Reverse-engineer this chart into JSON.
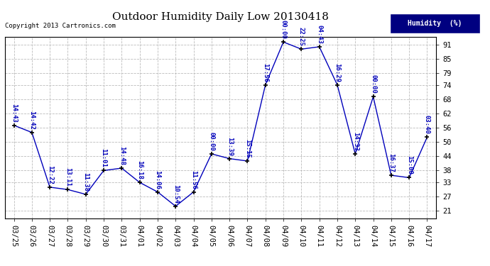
{
  "title": "Outdoor Humidity Daily Low 20130418",
  "copyright": "Copyright 2013 Cartronics.com",
  "legend_label": "Humidity  (%)",
  "x_labels": [
    "03/25",
    "03/26",
    "03/27",
    "03/28",
    "03/29",
    "03/30",
    "03/31",
    "04/01",
    "04/02",
    "04/03",
    "04/04",
    "04/05",
    "04/06",
    "04/07",
    "04/08",
    "04/09",
    "04/10",
    "04/11",
    "04/12",
    "04/13",
    "04/14",
    "04/15",
    "04/16",
    "04/17"
  ],
  "y_values": [
    57,
    54,
    31,
    30,
    28,
    38,
    39,
    33,
    29,
    23,
    29,
    45,
    43,
    42,
    74,
    92,
    89,
    90,
    74,
    45,
    69,
    36,
    35,
    52
  ],
  "time_labels": [
    "14:43",
    "14:42",
    "12:22",
    "13:11",
    "11:38",
    "11:01",
    "14:48",
    "16:18",
    "14:06",
    "10:54",
    "11:56",
    "00:00",
    "13:39",
    "15:15",
    "17:56",
    "00:00",
    "22:25",
    "04:43",
    "16:29",
    "14:33",
    "00:00",
    "16:37",
    "15:00",
    "03:40"
  ],
  "line_color": "#0000bb",
  "marker_color": "#000000",
  "bg_color": "#ffffff",
  "grid_color": "#bbbbbb",
  "title_fontsize": 11,
  "label_fontsize": 6.5,
  "tick_fontsize": 7.5,
  "copyright_fontsize": 6.5,
  "ylim": [
    18,
    94
  ],
  "yticks": [
    21,
    27,
    33,
    38,
    44,
    50,
    56,
    62,
    68,
    74,
    79,
    85,
    91
  ]
}
